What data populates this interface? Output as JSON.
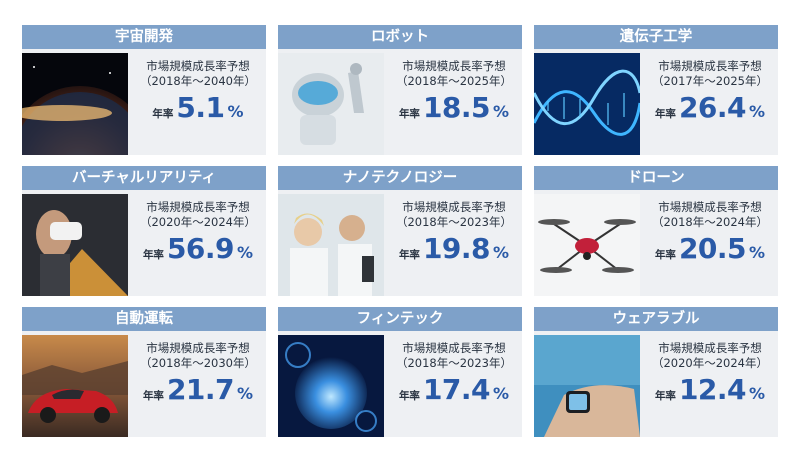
{
  "cards": [
    {
      "title": "宇宙開発",
      "label": "市場規模成長率予想",
      "period": "（2018年〜2040年）",
      "rate_label": "年率",
      "rate": "5.1",
      "unit": "%",
      "icon": "earth-space-photo"
    },
    {
      "title": "ロボット",
      "label": "市場規模成長率予想",
      "period": "（2018年〜2025年）",
      "rate_label": "年率",
      "rate": "18.5",
      "unit": "%",
      "icon": "robot-photo"
    },
    {
      "title": "遺伝子工学",
      "label": "市場規模成長率予想",
      "period": "（2017年〜2025年）",
      "rate_label": "年率",
      "rate": "26.4",
      "unit": "%",
      "icon": "dna-helix-photo"
    },
    {
      "title": "バーチャルリアリティ",
      "label": "市場規模成長率予想",
      "period": "（2020年〜2024年）",
      "rate_label": "年率",
      "rate": "56.9",
      "unit": "%",
      "icon": "vr-headset-photo"
    },
    {
      "title": "ナノテクノロジー",
      "label": "市場規模成長率予想",
      "period": "（2018年〜2023年）",
      "rate_label": "年率",
      "rate": "19.8",
      "unit": "%",
      "icon": "laboratory-photo"
    },
    {
      "title": "ドローン",
      "label": "市場規模成長率予想",
      "period": "（2018年〜2024年）",
      "rate_label": "年率",
      "rate": "20.5",
      "unit": "%",
      "icon": "drone-photo"
    },
    {
      "title": "自動運転",
      "label": "市場規模成長率予想",
      "period": "（2018年〜2030年）",
      "rate_label": "年率",
      "rate": "21.7",
      "unit": "%",
      "icon": "red-car-photo"
    },
    {
      "title": "フィンテック",
      "label": "市場規模成長率予想",
      "period": "（2018年〜2023年）",
      "rate_label": "年率",
      "rate": "17.4",
      "unit": "%",
      "icon": "fintech-globe-photo"
    },
    {
      "title": "ウェアラブル",
      "label": "市場規模成長率予想",
      "period": "（2020年〜2024年）",
      "rate_label": "年率",
      "rate": "12.4",
      "unit": "%",
      "icon": "smartwatch-photo"
    }
  ]
}
